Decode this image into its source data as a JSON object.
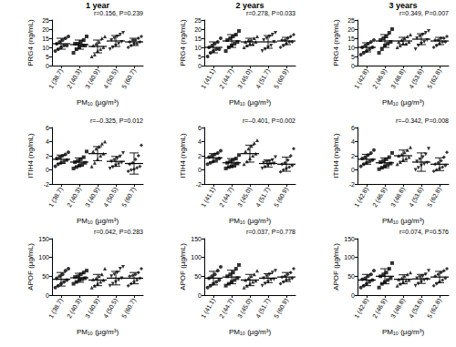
{
  "chart_data": [
    {
      "type": "scatter",
      "title": "1 year",
      "annotation": "r=0.156, P=0.239",
      "y_label": "PRG4 (ng/mL)",
      "x_label": "PM₁₀ (µg/m³)",
      "color": "#000000",
      "grid": false,
      "categories": [
        "1 (38.7)",
        "2 (40.3)",
        "3 (40.9)",
        "4 (50.5)",
        "5 (60.7)"
      ],
      "markers": [
        "circle",
        "square",
        "triangle",
        "inverted_triangle",
        "diamond"
      ],
      "points": [
        [
          8,
          9,
          10,
          11,
          11,
          12,
          13,
          14,
          15,
          16
        ],
        [
          7,
          9,
          10,
          11,
          11,
          12,
          12,
          13,
          14,
          16
        ],
        [
          5,
          6,
          8,
          9,
          10,
          11,
          12,
          13,
          15,
          16
        ],
        [
          9,
          10,
          11,
          12,
          13,
          14,
          15,
          16,
          17,
          18
        ],
        [
          10,
          11,
          12,
          12,
          13,
          13,
          14,
          14,
          15,
          16
        ]
      ],
      "mean": [
        12,
        11.5,
        10.5,
        13.5,
        13
      ],
      "sd": [
        3,
        2.5,
        3.5,
        3,
        2
      ],
      "ylim": [
        0,
        25
      ],
      "yticks": [
        0,
        5,
        10,
        15,
        20,
        25
      ]
    },
    {
      "type": "scatter",
      "title": "2 years",
      "annotation": "r=0.278, P=0.033",
      "y_label": "PRG4 (ng/mL)",
      "x_label": "PM₁₀ (µg/m³)",
      "color": "#000000",
      "grid": false,
      "categories": [
        "1 (41.1)",
        "2 (44.7)",
        "3 (45.0)",
        "4 (51.7)",
        "5 (60.9)"
      ],
      "markers": [
        "circle",
        "square",
        "triangle",
        "inverted_triangle",
        "diamond"
      ],
      "points": [
        [
          5,
          7,
          8,
          9,
          9,
          10,
          11,
          12,
          13,
          15
        ],
        [
          8,
          10,
          11,
          12,
          13,
          14,
          15,
          16,
          17,
          19
        ],
        [
          10,
          11,
          12,
          12,
          13,
          13,
          14,
          14,
          15,
          16
        ],
        [
          8,
          9,
          10,
          11,
          13,
          14,
          15,
          16,
          17,
          18
        ],
        [
          10,
          11,
          12,
          13,
          13,
          14,
          14,
          15,
          16,
          17
        ]
      ],
      "mean": [
        10,
        13.5,
        13,
        13,
        13.5
      ],
      "sd": [
        3,
        3.5,
        2,
        3.5,
        2
      ],
      "ylim": [
        0,
        25
      ],
      "yticks": [
        0,
        5,
        10,
        15,
        20,
        25
      ]
    },
    {
      "type": "scatter",
      "title": "3 years",
      "annotation": "r=0.349, P=0.007",
      "y_label": "PRG4 (ng/mL)",
      "x_label": "PM₁₀ (µg/m³)",
      "color": "#000000",
      "grid": false,
      "categories": [
        "1 (42.8)",
        "2 (46.9)",
        "3 (48.8)",
        "4 (53.6)",
        "5 (62.8)"
      ],
      "markers": [
        "circle",
        "square",
        "triangle",
        "inverted_triangle",
        "diamond"
      ],
      "points": [
        [
          6,
          7,
          8,
          9,
          10,
          10,
          11,
          12,
          13,
          14
        ],
        [
          7,
          9,
          11,
          12,
          13,
          14,
          15,
          16,
          18,
          20
        ],
        [
          10,
          11,
          12,
          12,
          13,
          13,
          14,
          15,
          16,
          17
        ],
        [
          9,
          11,
          12,
          13,
          14,
          15,
          16,
          17,
          18,
          19
        ],
        [
          10,
          11,
          12,
          13,
          13,
          14,
          14,
          15,
          15,
          16
        ]
      ],
      "mean": [
        10,
        13.5,
        13.5,
        14.5,
        13.5
      ],
      "sd": [
        2.5,
        3.5,
        2,
        3,
        2
      ],
      "ylim": [
        0,
        25
      ],
      "yticks": [
        0,
        5,
        10,
        15,
        20,
        25
      ]
    },
    {
      "type": "scatter",
      "annotation": "r=–0.325, P=0.012",
      "y_label": "ITIH4 (ng/mL)",
      "x_label": "PM₁₀ (µg/m³)",
      "color": "#000000",
      "grid": false,
      "categories": [
        "1 (38.7)",
        "2 (40.3)",
        "3 (40.9)",
        "4 (50.5)",
        "5 (60.7)"
      ],
      "markers": [
        "circle",
        "square",
        "triangle",
        "inverted_triangle",
        "diamond"
      ],
      "points": [
        [
          0.5,
          0.8,
          1.0,
          1.2,
          1.4,
          1.6,
          1.8,
          2.0,
          2.2,
          2.5
        ],
        [
          0.2,
          0.4,
          0.6,
          0.8,
          1.0,
          1.1,
          1.3,
          1.5,
          1.8,
          2.6
        ],
        [
          0.5,
          1.0,
          1.5,
          2.0,
          2.3,
          2.6,
          3.0,
          3.3,
          3.7,
          4.0
        ],
        [
          0.2,
          0.4,
          0.6,
          0.8,
          1.0,
          1.2,
          1.4,
          1.6,
          1.9,
          2.4
        ],
        [
          -0.2,
          0,
          0.1,
          0.3,
          0.5,
          0.8,
          1.0,
          1.5,
          2.0,
          3.5
        ]
      ],
      "mean": [
        1.5,
        1.1,
        2.3,
        1.2,
        0.9
      ],
      "sd": [
        0.6,
        0.6,
        1.0,
        0.7,
        1.5
      ],
      "ylim": [
        -2,
        6
      ],
      "yticks": [
        -2,
        0,
        2,
        4,
        6
      ]
    },
    {
      "type": "scatter",
      "annotation": "r=–0.401, P=0.002",
      "y_label": "ITIH4 (ng/mL)",
      "x_label": "PM₁₀ (µg/m³)",
      "color": "#000000",
      "grid": false,
      "categories": [
        "1 (41.1)",
        "2 (44.7)",
        "3 (45.0)",
        "4 (51.7)",
        "5 (60.9)"
      ],
      "markers": [
        "circle",
        "square",
        "triangle",
        "inverted_triangle",
        "diamond"
      ],
      "points": [
        [
          0.8,
          1.0,
          1.2,
          1.4,
          1.6,
          1.8,
          2.0,
          2.2,
          2.4,
          2.7
        ],
        [
          0.2,
          0.4,
          0.5,
          0.7,
          0.9,
          1.0,
          1.2,
          1.4,
          1.6,
          2.1
        ],
        [
          0.8,
          1.2,
          1.6,
          2.0,
          2.3,
          2.6,
          3.0,
          3.4,
          3.8,
          4.2
        ],
        [
          0.2,
          0.4,
          0.6,
          0.8,
          0.9,
          1.0,
          1.1,
          1.2,
          1.4,
          1.8
        ],
        [
          -0.3,
          0,
          0.2,
          0.4,
          0.6,
          0.8,
          1.0,
          1.4,
          2.0,
          3.0
        ]
      ],
      "mean": [
        1.7,
        1.0,
        2.3,
        0.9,
        0.8
      ],
      "sd": [
        0.6,
        0.6,
        1.2,
        0.5,
        1.0
      ],
      "ylim": [
        -2,
        6
      ],
      "yticks": [
        -2,
        0,
        2,
        4,
        6
      ]
    },
    {
      "type": "scatter",
      "annotation": "r=–0.342, P=0.008",
      "y_label": "ITIH4 (ng/mL)",
      "x_label": "PM₁₀ (µg/m³)",
      "color": "#000000",
      "grid": false,
      "categories": [
        "1 (42.8)",
        "2 (46.9)",
        "3 (48.8)",
        "4 (53.6)",
        "5 (62.8)"
      ],
      "markers": [
        "circle",
        "square",
        "triangle",
        "inverted_triangle",
        "diamond"
      ],
      "points": [
        [
          0.5,
          0.8,
          1.0,
          1.2,
          1.4,
          1.6,
          1.8,
          2.1,
          2.4,
          2.8
        ],
        [
          0.1,
          0.3,
          0.5,
          0.7,
          0.9,
          1.1,
          1.3,
          1.5,
          1.8,
          2.4
        ],
        [
          0.8,
          1.1,
          1.4,
          1.6,
          1.8,
          2.0,
          2.2,
          2.5,
          2.8,
          3.2
        ],
        [
          0,
          0.3,
          0.6,
          0.8,
          1.0,
          1.2,
          1.5,
          1.8,
          2.2,
          3.0
        ],
        [
          -0.2,
          0,
          0.2,
          0.4,
          0.6,
          0.8,
          1.0,
          1.3,
          1.8,
          2.5
        ]
      ],
      "mean": [
        1.5,
        1.0,
        2.0,
        1.1,
        0.8
      ],
      "sd": [
        0.7,
        0.7,
        0.8,
        1.3,
        0.9
      ],
      "ylim": [
        -2,
        6
      ],
      "yticks": [
        -2,
        0,
        2,
        4,
        6
      ]
    },
    {
      "type": "scatter",
      "annotation": "r=0.042, P=0.283",
      "y_label": "APOF (µg/mL)",
      "x_label": "PM₁₀ (µg/m³)",
      "color": "#000000",
      "grid": false,
      "categories": [
        "1 (38.7)",
        "2 (40.3)",
        "3 (40.9)",
        "4 (50.5)",
        "5 (60.7)"
      ],
      "markers": [
        "circle",
        "square",
        "triangle",
        "inverted_triangle",
        "diamond"
      ],
      "points": [
        [
          20,
          25,
          30,
          35,
          40,
          45,
          50,
          55,
          65,
          70
        ],
        [
          30,
          35,
          40,
          42,
          45,
          48,
          50,
          55,
          60,
          65
        ],
        [
          20,
          25,
          30,
          35,
          40,
          42,
          45,
          50,
          55,
          70
        ],
        [
          25,
          30,
          35,
          40,
          45,
          50,
          55,
          60,
          70,
          75
        ],
        [
          25,
          30,
          35,
          40,
          45,
          50,
          52,
          55,
          60,
          70
        ]
      ],
      "mean": [
        42,
        46,
        40,
        45,
        45
      ],
      "sd": [
        18,
        12,
        15,
        18,
        15
      ],
      "ylim": [
        0,
        150
      ],
      "yticks": [
        0,
        50,
        100,
        150
      ]
    },
    {
      "type": "scatter",
      "annotation": "r=0.037, P=0.778",
      "y_label": "APOF (µg/mL)",
      "x_label": "PM₁₀ (µg/m³)",
      "color": "#000000",
      "grid": false,
      "categories": [
        "1 (41.1)",
        "2 (44.7)",
        "3 (45.0)",
        "4 (51.7)",
        "5 (60.9)"
      ],
      "markers": [
        "circle",
        "square",
        "triangle",
        "inverted_triangle",
        "diamond"
      ],
      "points": [
        [
          20,
          25,
          30,
          35,
          40,
          45,
          50,
          55,
          65,
          75
        ],
        [
          25,
          30,
          35,
          40,
          45,
          50,
          55,
          60,
          70,
          80
        ],
        [
          20,
          25,
          30,
          35,
          38,
          40,
          45,
          50,
          55,
          65
        ],
        [
          25,
          30,
          35,
          40,
          42,
          45,
          50,
          55,
          60,
          65
        ],
        [
          30,
          35,
          40,
          42,
          45,
          48,
          50,
          55,
          60,
          70
        ]
      ],
      "mean": [
        45,
        48,
        40,
        45,
        48
      ],
      "sd": [
        18,
        18,
        15,
        12,
        12
      ],
      "ylim": [
        0,
        150
      ],
      "yticks": [
        0,
        50,
        100,
        150
      ]
    },
    {
      "type": "scatter",
      "annotation": "r=0.074, P=0.576",
      "y_label": "APOF (µg/mL)",
      "x_label": "PM₁₀ (µg/m³)",
      "color": "#000000",
      "grid": false,
      "categories": [
        "1 (42.8)",
        "2 (46.9)",
        "3 (48.8)",
        "4 (53.6)",
        "5 (62.8)"
      ],
      "markers": [
        "circle",
        "square",
        "triangle",
        "inverted_triangle",
        "diamond"
      ],
      "points": [
        [
          20,
          25,
          30,
          35,
          40,
          42,
          45,
          50,
          55,
          65
        ],
        [
          20,
          30,
          35,
          40,
          45,
          50,
          55,
          60,
          70,
          85
        ],
        [
          25,
          30,
          35,
          38,
          40,
          42,
          45,
          50,
          55,
          60
        ],
        [
          25,
          30,
          35,
          40,
          42,
          45,
          48,
          50,
          55,
          65
        ],
        [
          25,
          30,
          35,
          40,
          45,
          50,
          55,
          60,
          65,
          70
        ]
      ],
      "mean": [
        40,
        50,
        42,
        43,
        48
      ],
      "sd": [
        15,
        20,
        12,
        12,
        15
      ],
      "ylim": [
        0,
        150
      ],
      "yticks": [
        0,
        50,
        100,
        150
      ]
    }
  ]
}
